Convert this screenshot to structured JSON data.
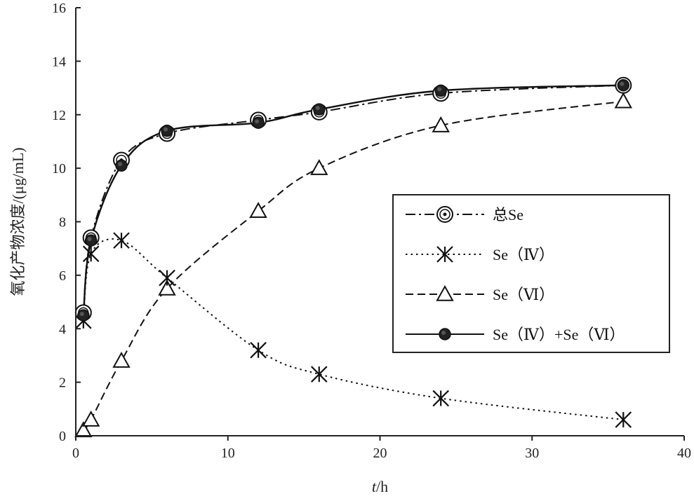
{
  "chart_data": {
    "type": "line",
    "xlabel_italic": "t",
    "xlabel_unit": "/h",
    "ylabel": "氧化产物浓度/(μg/mL)",
    "xlim": [
      0,
      40
    ],
    "ylim": [
      0,
      16
    ],
    "xticks": [
      "0",
      "10",
      "20",
      "30",
      "40"
    ],
    "yticks": [
      "0",
      "2",
      "4",
      "6",
      "8",
      "10",
      "12",
      "14",
      "16"
    ],
    "grid": false,
    "legend_position": "center-right",
    "series": [
      {
        "name": "总Se",
        "marker": "open-circle-dot",
        "line_style": "dash-dot",
        "x": [
          0.5,
          1,
          3,
          6,
          12,
          16,
          24,
          36
        ],
        "y": [
          4.6,
          7.4,
          10.3,
          11.3,
          11.8,
          12.1,
          12.8,
          13.1
        ]
      },
      {
        "name": "Se（Ⅳ）",
        "marker": "asterisk",
        "line_style": "dotted",
        "x": [
          0.5,
          1,
          3,
          6,
          12,
          16,
          24,
          36
        ],
        "y": [
          4.3,
          6.8,
          7.3,
          5.9,
          3.2,
          2.3,
          1.4,
          0.6
        ]
      },
      {
        "name": "Se（Ⅵ）",
        "marker": "open-triangle",
        "line_style": "dashed",
        "x": [
          0.5,
          1,
          3,
          6,
          12,
          16,
          24,
          36
        ],
        "y": [
          0.2,
          0.6,
          2.8,
          5.5,
          8.4,
          10.0,
          11.6,
          12.5
        ]
      },
      {
        "name": "Se（Ⅳ）+Se（Ⅵ）",
        "marker": "filled-circle",
        "line_style": "solid",
        "x": [
          0.5,
          1,
          3,
          6,
          12,
          16,
          24,
          36
        ],
        "y": [
          4.5,
          7.3,
          10.1,
          11.4,
          11.7,
          12.2,
          12.9,
          13.1
        ]
      }
    ]
  }
}
